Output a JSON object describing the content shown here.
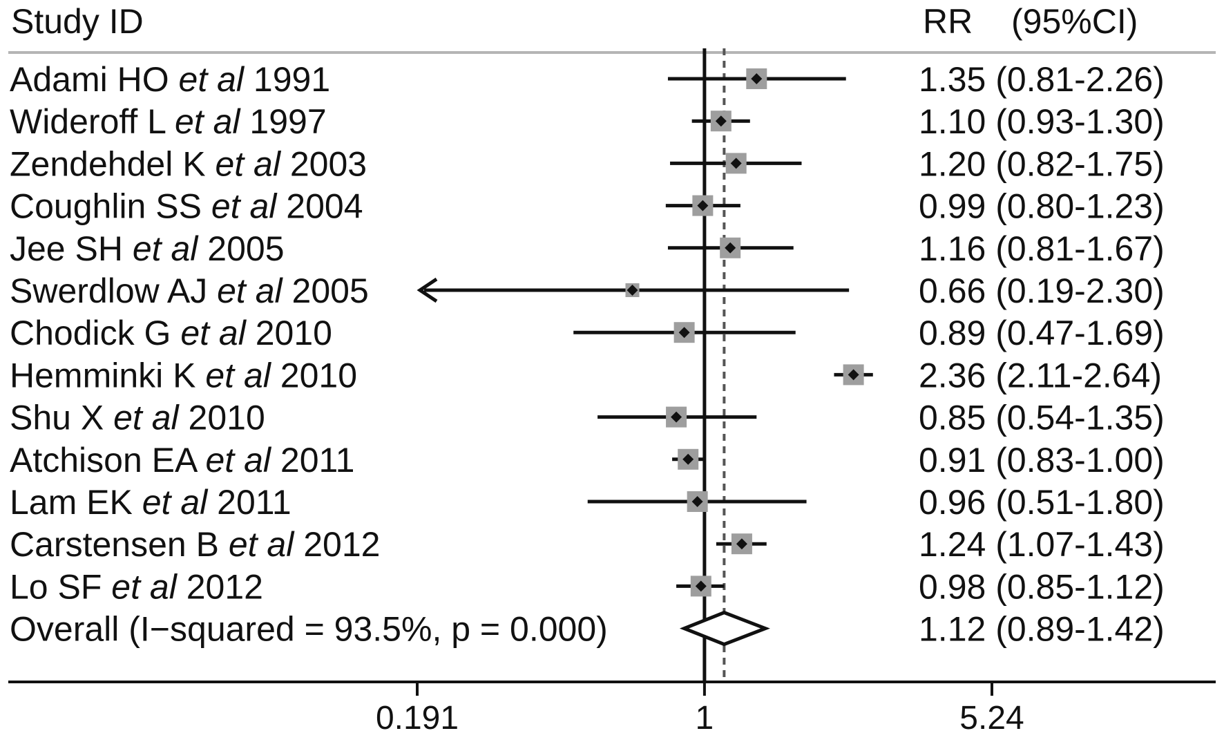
{
  "header": {
    "study_id": "Study  ID",
    "rr": "RR",
    "ci": "(95%CI)"
  },
  "chart_data": {
    "type": "forest",
    "x_scale": "log",
    "xlim": [
      0.191,
      5.24
    ],
    "x_ticks": [
      {
        "value": 0.191,
        "label": "0.191"
      },
      {
        "value": 1,
        "label": "1"
      },
      {
        "value": 5.24,
        "label": "5.24"
      }
    ],
    "null_line": 1,
    "pooled_line": 1.12,
    "studies": [
      {
        "author": "Adami HO ",
        "etal": "et al",
        "year": " 1991",
        "rr": 1.35,
        "lo": 0.81,
        "hi": 2.26,
        "label": "1.35 (0.81-2.26)"
      },
      {
        "author": "Wideroff L ",
        "etal": "et al",
        "year": " 1997",
        "rr": 1.1,
        "lo": 0.93,
        "hi": 1.3,
        "label": "1.10 (0.93-1.30)"
      },
      {
        "author": "Zendehdel K ",
        "etal": "et al",
        "year": " 2003",
        "rr": 1.2,
        "lo": 0.82,
        "hi": 1.75,
        "label": "1.20 (0.82-1.75)"
      },
      {
        "author": "Coughlin SS ",
        "etal": "et al",
        "year": " 2004",
        "rr": 0.99,
        "lo": 0.8,
        "hi": 1.23,
        "label": "0.99 (0.80-1.23)"
      },
      {
        "author": "Jee SH ",
        "etal": "et al",
        "year": " 2005",
        "rr": 1.16,
        "lo": 0.81,
        "hi": 1.67,
        "label": "1.16 (0.81-1.67)"
      },
      {
        "author": "Swerdlow AJ ",
        "etal": "et al",
        "year": " 2005",
        "rr": 0.66,
        "lo": 0.19,
        "hi": 2.3,
        "label": "0.66 (0.19-2.30)",
        "arrow_left": true
      },
      {
        "author": "Chodick G ",
        "etal": "et al",
        "year": " 2010",
        "rr": 0.89,
        "lo": 0.47,
        "hi": 1.69,
        "label": "0.89 (0.47-1.69)"
      },
      {
        "author": "Hemminki K ",
        "etal": "et al",
        "year": " 2010",
        "rr": 2.36,
        "lo": 2.11,
        "hi": 2.64,
        "label": "2.36 (2.11-2.64)"
      },
      {
        "author": "Shu X ",
        "etal": "et al",
        "year": " 2010",
        "rr": 0.85,
        "lo": 0.54,
        "hi": 1.35,
        "label": "0.85 (0.54-1.35)"
      },
      {
        "author": "Atchison EA ",
        "etal": "et al",
        "year": " 2011",
        "rr": 0.91,
        "lo": 0.83,
        "hi": 1.0,
        "label": "0.91 (0.83-1.00)"
      },
      {
        "author": "Lam EK ",
        "etal": "et al",
        "year": " 2011",
        "rr": 0.96,
        "lo": 0.51,
        "hi": 1.8,
        "label": "0.96 (0.51-1.80)"
      },
      {
        "author": "Carstensen B ",
        "etal": "et al",
        "year": " 2012",
        "rr": 1.24,
        "lo": 1.07,
        "hi": 1.43,
        "label": "1.24 (1.07-1.43)"
      },
      {
        "author": "Lo SF ",
        "etal": "et al",
        "year": " 2012",
        "rr": 0.98,
        "lo": 0.85,
        "hi": 1.12,
        "label": "0.98 (0.85-1.12)"
      }
    ],
    "overall": {
      "label": "Overall  (I−squared = 93.5%, p = 0.000)",
      "rr": 1.12,
      "lo": 0.89,
      "hi": 1.42,
      "rr_label": "1.12 (0.89-1.42)"
    }
  },
  "colors": {
    "line": "#111111",
    "square": "#9e9e9e",
    "separator": "#b5b5b5",
    "dashed": "#555555"
  }
}
